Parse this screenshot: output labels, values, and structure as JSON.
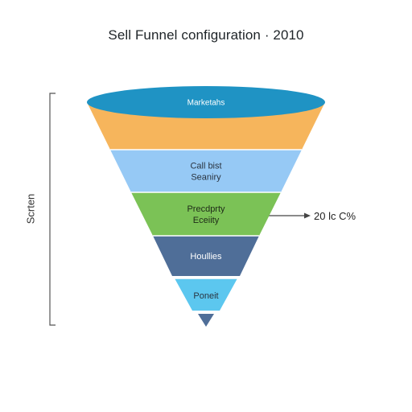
{
  "title": "Sell Funnel configuration · 2010",
  "side_label": "Scrten",
  "callout": "20 lc C%",
  "stages": [
    {
      "lines": [
        "Marketahs"
      ],
      "color": "#1f93c4",
      "text_color": "#ffffff"
    },
    {
      "lines": [
        ""
      ],
      "color": "#f6b55c",
      "text_color": "#333333"
    },
    {
      "lines": [
        "Call bist",
        "Seaniry"
      ],
      "color": "#96c9f5",
      "text_color": "#2a3440"
    },
    {
      "lines": [
        "Precdprty",
        "Eceiity"
      ],
      "color": "#7bc256",
      "text_color": "#1e2a18"
    },
    {
      "lines": [
        "Houllies"
      ],
      "color": "#4f6e98",
      "text_color": "#ffffff"
    },
    {
      "lines": [
        "Poneit"
      ],
      "color": "#5cc7ef",
      "text_color": "#2a3440"
    },
    {
      "lines": [
        ""
      ],
      "color": "#4f6e98",
      "text_color": "#ffffff"
    }
  ],
  "colors": {
    "background": "#ffffff",
    "bracket": "#555555",
    "arrow": "#444444"
  }
}
